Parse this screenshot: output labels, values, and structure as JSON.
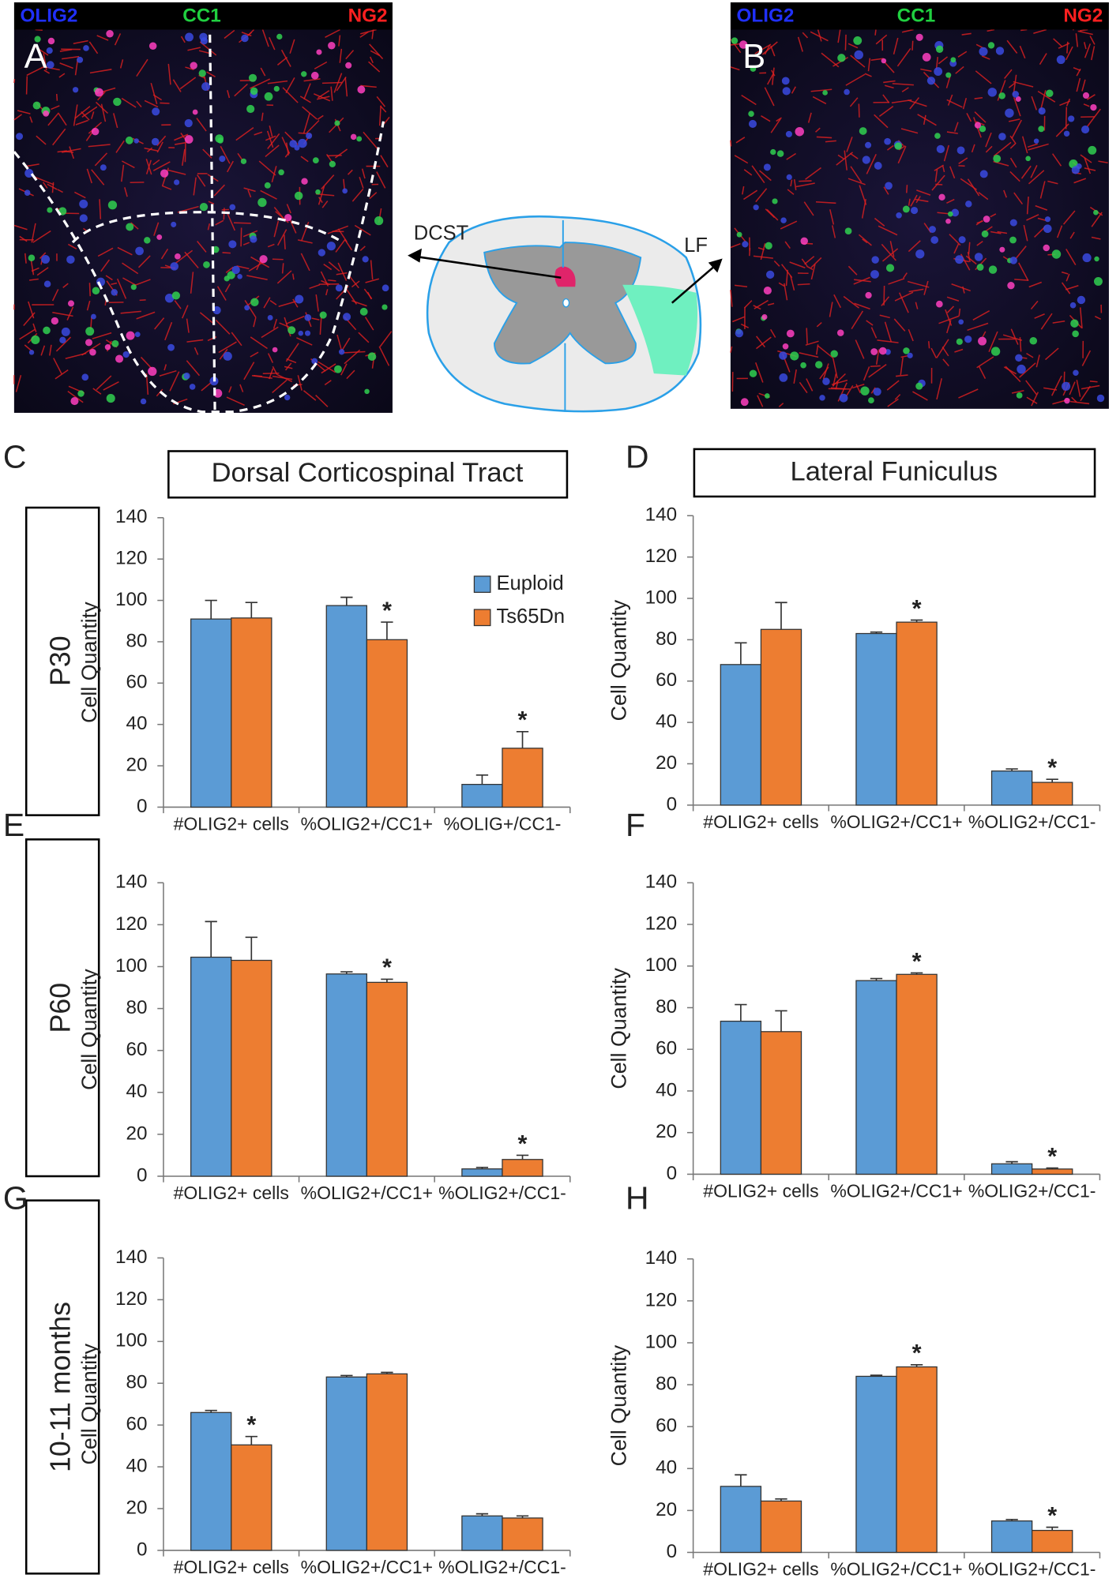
{
  "figure": {
    "panel_a": {
      "letter": "A",
      "channels": [
        "OLIG2",
        "CC1",
        "NG2"
      ]
    },
    "panel_b": {
      "letter": "B",
      "channels": [
        "OLIG2",
        "CC1",
        "NG2"
      ]
    },
    "diagram_labels": [
      "DCST",
      "LF"
    ],
    "column_titles": [
      "Dorsal Corticospinal Tract",
      "Lateral Funiculus"
    ],
    "row_labels": [
      "P30",
      "P60",
      "10-11 months"
    ]
  },
  "chart_data": [
    {
      "type": "bar",
      "panel": "C",
      "ylabel": "Cell Quantity",
      "categories": [
        "#OLIG2+ cells",
        "%OLIG2+/CC1+",
        "%OLIG+/CC1-"
      ],
      "series": [
        {
          "name": "Euploid",
          "color": "#5b9bd5",
          "values": [
            91,
            97.5,
            11
          ],
          "errors": [
            9,
            4,
            4.5
          ],
          "markers": [
            null,
            null,
            null
          ]
        },
        {
          "name": "Ts65Dn",
          "color": "#ed7d31",
          "values": [
            91.5,
            81,
            28.5
          ],
          "errors": [
            7.5,
            8.5,
            8
          ],
          "markers": [
            null,
            "*",
            "*"
          ]
        }
      ],
      "ylim": [
        0,
        140
      ],
      "yticks": [
        0,
        20,
        40,
        60,
        80,
        100,
        120,
        140
      ],
      "legend": "upper right"
    },
    {
      "type": "bar",
      "panel": "D",
      "ylabel": "Cell Quantity",
      "categories": [
        "#OLIG2+ cells",
        "%OLIG2+/CC1+",
        "%OLIG2+/CC1-"
      ],
      "series": [
        {
          "name": "Euploid",
          "color": "#5b9bd5",
          "values": [
            68,
            83,
            16.5
          ],
          "errors": [
            10.5,
            0.7,
            1
          ],
          "markers": [
            null,
            null,
            null
          ]
        },
        {
          "name": "Ts65Dn",
          "color": "#ed7d31",
          "values": [
            85,
            88.5,
            11
          ],
          "errors": [
            13,
            1,
            1.5
          ],
          "markers": [
            null,
            "*",
            "*"
          ]
        }
      ],
      "ylim": [
        0,
        140
      ],
      "yticks": [
        0,
        20,
        40,
        60,
        80,
        100,
        120,
        140
      ]
    },
    {
      "type": "bar",
      "panel": "E",
      "ylabel": "Cell Quantity",
      "categories": [
        "#OLIG2+ cells",
        "%OLIG2+/CC1+",
        "%OLIG2+/CC1-"
      ],
      "series": [
        {
          "name": "Euploid",
          "color": "#5b9bd5",
          "values": [
            104.5,
            96.5,
            3.5
          ],
          "errors": [
            17,
            1,
            0.7
          ],
          "markers": [
            null,
            null,
            null
          ]
        },
        {
          "name": "Ts65Dn",
          "color": "#ed7d31",
          "values": [
            103,
            92.5,
            8
          ],
          "errors": [
            11,
            1.5,
            2
          ],
          "markers": [
            null,
            "*",
            "*"
          ]
        }
      ],
      "ylim": [
        0,
        140
      ],
      "yticks": [
        0,
        20,
        40,
        60,
        80,
        100,
        120,
        140
      ]
    },
    {
      "type": "bar",
      "panel": "F",
      "ylabel": "Cell Quantity",
      "categories": [
        "#OLIG2+ cells",
        "%OLIG2+/CC1+",
        "%OLIG2+/CC1-"
      ],
      "series": [
        {
          "name": "Euploid",
          "color": "#5b9bd5",
          "values": [
            73.5,
            93,
            5
          ],
          "errors": [
            8,
            1,
            1
          ],
          "markers": [
            null,
            null,
            null
          ]
        },
        {
          "name": "Ts65Dn",
          "color": "#ed7d31",
          "values": [
            68.5,
            96,
            2.5
          ],
          "errors": [
            10,
            0.7,
            0.5
          ],
          "markers": [
            null,
            "*",
            "*"
          ]
        }
      ],
      "ylim": [
        0,
        140
      ],
      "yticks": [
        0,
        20,
        40,
        60,
        80,
        100,
        120,
        140
      ]
    },
    {
      "type": "bar",
      "panel": "G",
      "ylabel": "Cell Quantity",
      "categories": [
        "#OLIG2+ cells",
        "%OLIG2+/CC1+",
        "%OLIG2+/CC1-"
      ],
      "series": [
        {
          "name": "Euploid",
          "color": "#5b9bd5",
          "values": [
            66,
            83,
            16.5
          ],
          "errors": [
            1,
            0.7,
            1
          ],
          "markers": [
            null,
            null,
            null
          ]
        },
        {
          "name": "Ts65Dn",
          "color": "#ed7d31",
          "values": [
            50.5,
            84.5,
            15.5
          ],
          "errors": [
            4,
            0.7,
            1
          ],
          "markers": [
            "*",
            null,
            null
          ]
        }
      ],
      "ylim": [
        0,
        140
      ],
      "yticks": [
        0,
        20,
        40,
        60,
        80,
        100,
        120,
        140
      ]
    },
    {
      "type": "bar",
      "panel": "H",
      "ylabel": "Cell Quantity",
      "categories": [
        "#OLIG2+ cells",
        "%OLIG2+/CC1+",
        "%OLIG2+/CC1-"
      ],
      "series": [
        {
          "name": "Euploid",
          "color": "#5b9bd5",
          "values": [
            31.5,
            84,
            15
          ],
          "errors": [
            5.5,
            0.5,
            0.7
          ],
          "markers": [
            null,
            null,
            null
          ]
        },
        {
          "name": "Ts65Dn",
          "color": "#ed7d31",
          "values": [
            24.5,
            88.5,
            10.5
          ],
          "errors": [
            1,
            1,
            1.5
          ],
          "markers": [
            null,
            "*",
            "*"
          ]
        }
      ],
      "ylim": [
        0,
        140
      ],
      "yticks": [
        0,
        20,
        40,
        60,
        80,
        100,
        120,
        140
      ]
    }
  ]
}
